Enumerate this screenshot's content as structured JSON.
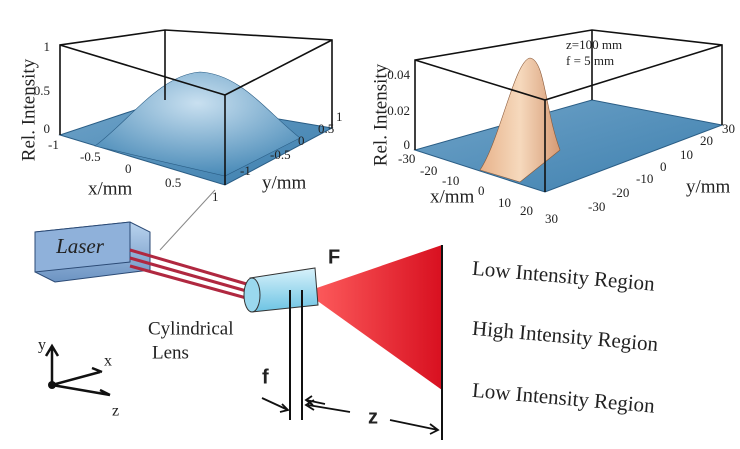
{
  "plot_left": {
    "z_label": "Rel. Intensity",
    "x_label": "x/mm",
    "y_label": "y/mm",
    "z_ticks": [
      "1",
      "0.5",
      "0"
    ],
    "x_ticks": [
      "-1",
      "-0.5",
      "0",
      "0.5",
      "1"
    ],
    "y_ticks": [
      "1",
      "0.5",
      "0",
      "-0.5",
      "-1"
    ]
  },
  "plot_right": {
    "z_label": "Rel. Intensity",
    "x_label": "x/mm",
    "y_label": "y/mm",
    "annotation": [
      "z=100 mm",
      "f =    5 mm"
    ],
    "z_ticks": [
      "0.04",
      "0.02",
      "0"
    ],
    "x_ticks": [
      "-30",
      "-20",
      "-10",
      "0",
      "10",
      "20",
      "30"
    ],
    "y_ticks": [
      "30",
      "20",
      "10",
      "0",
      "-10",
      "-20",
      "-30"
    ]
  },
  "setup": {
    "laser": "Laser",
    "focus": "F",
    "lens": [
      "Cylindrical",
      "Lens"
    ],
    "focal_length": "f",
    "distance": "z",
    "axes": [
      "y",
      "x",
      "z"
    ],
    "regions": [
      "Low Intensity Region",
      "High Intensity Region",
      "Low Intensity Region"
    ]
  }
}
